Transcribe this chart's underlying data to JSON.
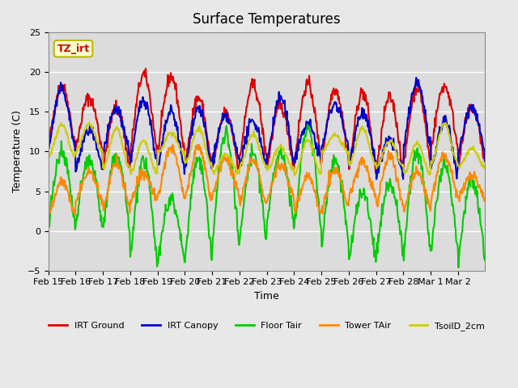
{
  "title": "Surface Temperatures",
  "xlabel": "Time",
  "ylabel": "Temperature (C)",
  "ylim": [
    -5,
    25
  ],
  "background_color": "#e8e8e8",
  "plot_bg_color": "#dcdcdc",
  "annotation_text": "TZ_irt",
  "annotation_color": "#cc0000",
  "annotation_bg": "#ffffcc",
  "annotation_border": "#bbbb00",
  "series_colors": {
    "IRT Ground": "#dd0000",
    "IRT Canopy": "#0000cc",
    "Floor Tair": "#00cc00",
    "Tower TAir": "#ff8800",
    "TsoilD_2cm": "#cccc00"
  },
  "xtick_labels": [
    "Feb 15",
    "Feb 16",
    "Feb 17",
    "Feb 18",
    "Feb 19",
    "Feb 20",
    "Feb 21",
    "Feb 22",
    "Feb 23",
    "Feb 24",
    "Feb 25",
    "Feb 26",
    "Feb 27",
    "Feb 28",
    "Mar 1",
    "Mar 2"
  ],
  "num_days": 16,
  "gridcolor": "#ffffff",
  "linewidth": 1.5
}
